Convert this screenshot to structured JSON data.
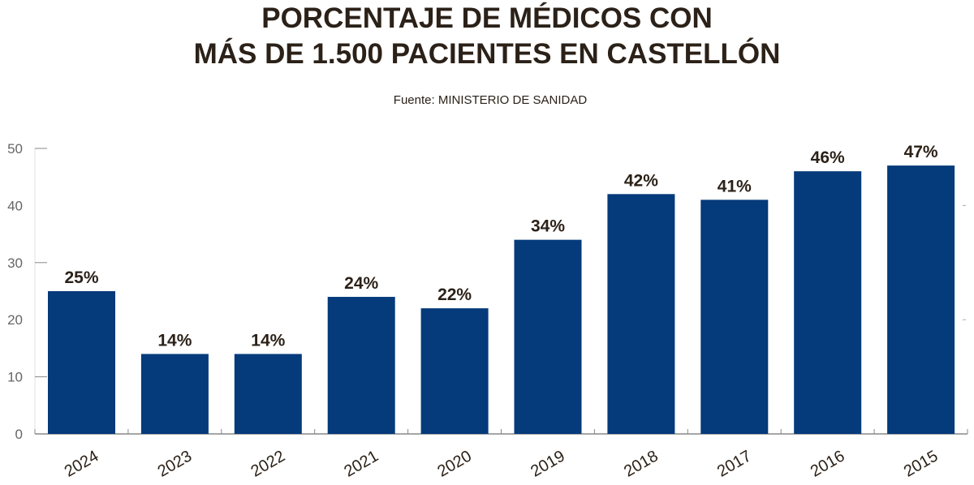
{
  "chart_data": {
    "type": "bar",
    "title_lines": [
      "PORCENTAJE DE MÉDICOS CON",
      "MÁS DE 1.500 PACIENTES EN CASTELLÓN"
    ],
    "subtitle": "Fuente: MINISTERIO DE SANIDAD",
    "categories": [
      "2024",
      "2023",
      "2022",
      "2021",
      "2020",
      "2019",
      "2018",
      "2017",
      "2016",
      "2015"
    ],
    "values": [
      25,
      14,
      14,
      24,
      22,
      34,
      42,
      41,
      46,
      47
    ],
    "data_labels": [
      "25%",
      "14%",
      "14%",
      "24%",
      "22%",
      "34%",
      "42%",
      "41%",
      "46%",
      "47%"
    ],
    "yticks": [
      "0",
      "10",
      "20",
      "30",
      "40",
      "50"
    ],
    "ylim": [
      0,
      50
    ],
    "xlabel": "",
    "ylabel": "",
    "grid": false,
    "bar_color": "#053a7b",
    "text_color": "#2b2118"
  }
}
